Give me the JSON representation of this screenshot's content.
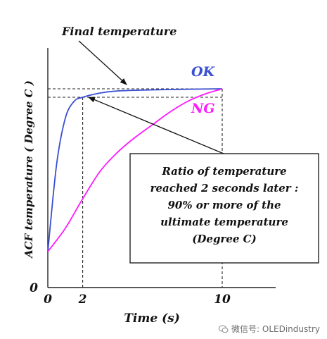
{
  "chart_data": {
    "type": "line",
    "title": "",
    "xlabel": "Time (s)",
    "ylabel": "ACF temperature ( Degree C )",
    "xlim": [
      0,
      15
    ],
    "ylim": [
      0,
      100
    ],
    "x_ticks": [
      {
        "value": 0,
        "label": "0"
      },
      {
        "value": 2,
        "label": "2"
      },
      {
        "value": 10,
        "label": "10"
      }
    ],
    "y_ticks": [
      {
        "value": 0,
        "label": "0"
      }
    ],
    "grid": false,
    "series": [
      {
        "name": "OK",
        "color": "#3a4fd1",
        "x": [
          0,
          0.5,
          1,
          1.5,
          2,
          3,
          4,
          6,
          8,
          10
        ],
        "y": [
          17,
          58,
          80,
          88,
          90,
          92,
          93,
          93.5,
          93.8,
          94
        ]
      },
      {
        "name": "NG",
        "color": "#ff1aff",
        "x": [
          0,
          1,
          2,
          3,
          4,
          5,
          6,
          7,
          8,
          9,
          10
        ],
        "y": [
          17,
          28,
          42,
          55,
          64,
          71,
          77,
          83,
          88,
          91.5,
          94
        ]
      }
    ],
    "reference_lines": [
      {
        "orientation": "horizontal",
        "value": 94,
        "style": "dashed"
      },
      {
        "orientation": "horizontal",
        "value": 90,
        "style": "dashed"
      },
      {
        "orientation": "vertical",
        "value": 2,
        "style": "dashed"
      },
      {
        "orientation": "vertical",
        "value": 10,
        "style": "dashed"
      }
    ],
    "annotations": {
      "final_temperature": "Final temperature",
      "ratio_box": [
        "Ratio of temperature",
        "reached 2 seconds later :",
        "90% or more of the",
        "ultimate temperature",
        "(Degree C)"
      ]
    }
  },
  "watermark": {
    "text": "微信号: OLEDindustry",
    "icon": "wechat-icon"
  }
}
